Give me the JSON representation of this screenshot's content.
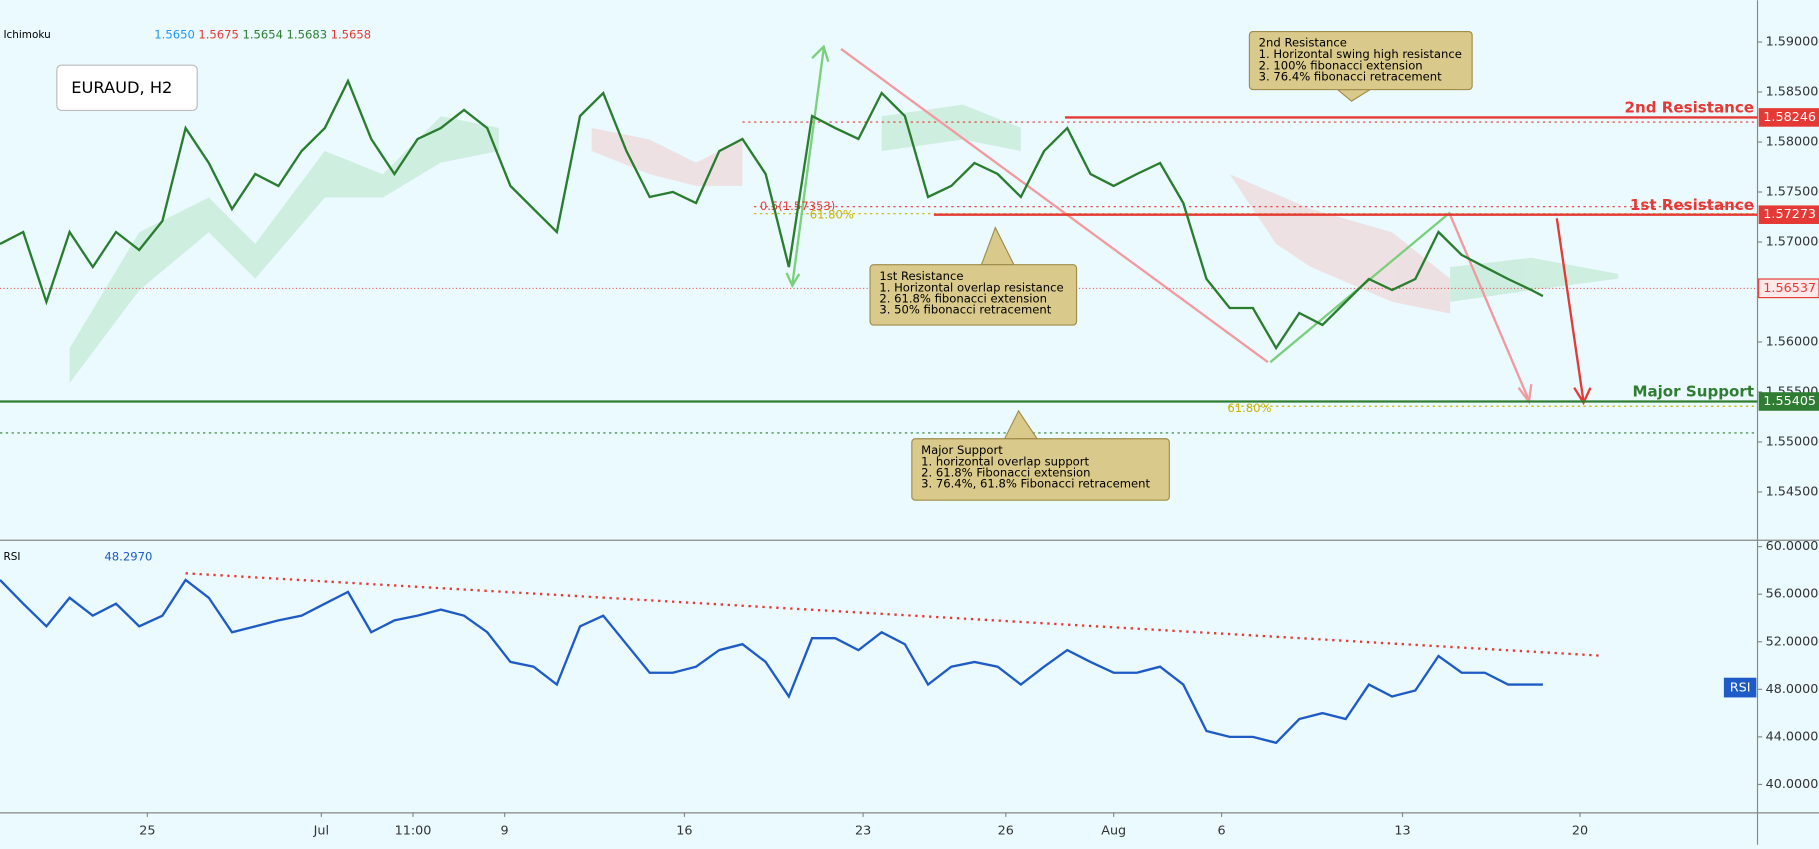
{
  "header": {
    "indicator": "Ichimoku",
    "indicator_values": [
      "1.5650",
      "1.5675",
      "1.5654",
      "1.5683",
      "1.5658"
    ],
    "symbol": "EURAUD, H2",
    "rsi_label": "RSI",
    "rsi_value": "48.2970"
  },
  "chart_data": [
    {
      "type": "line",
      "color": "#2a7d2e",
      "x": [
        0,
        2,
        4,
        6,
        8,
        10,
        12,
        14,
        16,
        18,
        20,
        22,
        24,
        26,
        28,
        30,
        32,
        34,
        36,
        38,
        40,
        42,
        44,
        46,
        48,
        50,
        52,
        54,
        56,
        58,
        60,
        62,
        64,
        66,
        68,
        70,
        72,
        74,
        76,
        78,
        80,
        82,
        84,
        86,
        88,
        90,
        92,
        94,
        96,
        98,
        100,
        102,
        104,
        106,
        108,
        110,
        112,
        114,
        116,
        118,
        120,
        122,
        124,
        126,
        128,
        130,
        132,
        133
      ],
      "values": [
        1.5698,
        1.571,
        1.564,
        1.571,
        1.5675,
        1.571,
        1.5692,
        1.5721,
        1.5814,
        1.5779,
        1.5733,
        1.5768,
        1.5756,
        1.5791,
        1.5814,
        1.5861,
        1.5803,
        1.5768,
        1.5803,
        1.5814,
        1.5832,
        1.5814,
        1.5756,
        1.5733,
        1.571,
        1.5826,
        1.5849,
        1.5791,
        1.5745,
        1.575,
        1.5739,
        1.5791,
        1.5803,
        1.5768,
        1.5675,
        1.5826,
        1.5814,
        1.5803,
        1.5849,
        1.5826,
        1.5745,
        1.5756,
        1.5779,
        1.5768,
        1.5745,
        1.5791,
        1.5814,
        1.5768,
        1.5756,
        1.5768,
        1.5779,
        1.5739,
        1.5663,
        1.5634,
        1.5634,
        1.5594,
        1.5629,
        1.5617,
        1.564,
        1.5663,
        1.5652,
        1.5663,
        1.571,
        1.5687,
        1.5675,
        1.5663,
        1.5652,
        1.5646
      ],
      "xlim": [
        0,
        151.5
      ],
      "xticks": [
        {
          "value": 12.7,
          "label": "25"
        },
        {
          "value": 27.7,
          "label": "Jul"
        },
        {
          "value": 35.6,
          "label": "11:00"
        },
        {
          "value": 43.5,
          "label": "9"
        },
        {
          "value": 59,
          "label": "16"
        },
        {
          "value": 74.4,
          "label": "23"
        },
        {
          "value": 86.7,
          "label": "26"
        },
        {
          "value": 96,
          "label": "Aug"
        },
        {
          "value": 105.3,
          "label": "6"
        },
        {
          "value": 120.9,
          "label": "13"
        },
        {
          "value": 136.2,
          "label": "20"
        }
      ],
      "ylim": [
        1.54023,
        1.59418
      ],
      "yticks": [
        {
          "value": 1.59,
          "label": "1.59000"
        },
        {
          "value": 1.585,
          "label": "1.58500"
        },
        {
          "value": 1.58,
          "label": "1.58000"
        },
        {
          "value": 1.575,
          "label": "1.57500"
        },
        {
          "value": 1.57,
          "label": "1.57000"
        },
        {
          "value": 1.565,
          "label": "1.56500"
        },
        {
          "value": 1.56,
          "label": "1.56000"
        },
        {
          "value": 1.555,
          "label": "1.55500"
        },
        {
          "value": 1.55,
          "label": "1.55000"
        },
        {
          "value": 1.545,
          "label": "1.54500"
        }
      ],
      "levels": [
        {
          "label": "2nd Resistance",
          "value": 1.58246,
          "color": "#e53935"
        },
        {
          "label": "1st Resistance",
          "value": 1.57273,
          "color": "#e53935"
        },
        {
          "label": "Major Support",
          "value": 1.55405,
          "color": "#2e7d32"
        }
      ],
      "current_price": 1.56537,
      "fib_labels": [
        "0.5(1.57353)",
        "61.80%",
        "61.80%"
      ],
      "annotations": [
        {
          "title": "2nd Resistance",
          "lines": [
            "1. Horizontal swing high resistance",
            "2. 100% fibonacci extension",
            "3. 76.4% fibonacci retracement"
          ]
        },
        {
          "title": "1st Resistance",
          "lines": [
            "1. Horizontal overlap resistance",
            "2. 61.8% fibonacci extension",
            "3. 50% fibonacci retracement"
          ]
        },
        {
          "title": "Major Support",
          "lines": [
            "1. horizontal overlap support",
            "2. 61.8% Fibonacci extension",
            "3. 76.4%, 61.8% Fibonacci retracement"
          ]
        }
      ]
    },
    {
      "type": "line",
      "color": "#1e5bc6",
      "x": [
        0,
        2,
        4,
        6,
        8,
        10,
        12,
        14,
        16,
        18,
        20,
        22,
        24,
        26,
        28,
        30,
        32,
        34,
        36,
        38,
        40,
        42,
        44,
        46,
        48,
        50,
        52,
        54,
        56,
        58,
        60,
        62,
        64,
        66,
        68,
        70,
        72,
        74,
        76,
        78,
        80,
        82,
        84,
        86,
        88,
        90,
        92,
        94,
        96,
        98,
        100,
        102,
        104,
        106,
        108,
        110,
        112,
        114,
        116,
        118,
        120,
        122,
        124,
        126,
        128,
        130,
        132,
        133
      ],
      "values": [
        57.2,
        55.2,
        53.3,
        55.7,
        54.2,
        55.2,
        53.3,
        54.2,
        57.2,
        55.7,
        52.8,
        53.3,
        53.8,
        54.2,
        55.2,
        56.2,
        52.8,
        53.8,
        54.2,
        54.7,
        54.2,
        52.8,
        50.3,
        49.9,
        48.4,
        53.3,
        54.2,
        51.8,
        49.4,
        49.4,
        49.9,
        51.3,
        51.8,
        50.3,
        47.4,
        52.3,
        52.3,
        51.3,
        52.8,
        51.8,
        48.4,
        49.9,
        50.3,
        49.9,
        48.4,
        49.9,
        51.3,
        50.3,
        49.4,
        49.4,
        49.9,
        48.4,
        44.5,
        44.0,
        44.0,
        43.5,
        45.5,
        46.0,
        45.5,
        48.4,
        47.4,
        47.9,
        50.8,
        49.4,
        49.4,
        48.4,
        48.4,
        48.4
      ],
      "xlim": [
        0,
        151.5
      ],
      "ylim": [
        37.66,
        60.49
      ],
      "yticks": [
        {
          "value": 60,
          "label": "60.0000"
        },
        {
          "value": 56,
          "label": "56.0000"
        },
        {
          "value": 52,
          "label": "52.0000"
        },
        {
          "value": 48,
          "label": "48.0000"
        },
        {
          "value": 44,
          "label": "44.0000"
        },
        {
          "value": 40,
          "label": "40.0000"
        }
      ]
    }
  ]
}
